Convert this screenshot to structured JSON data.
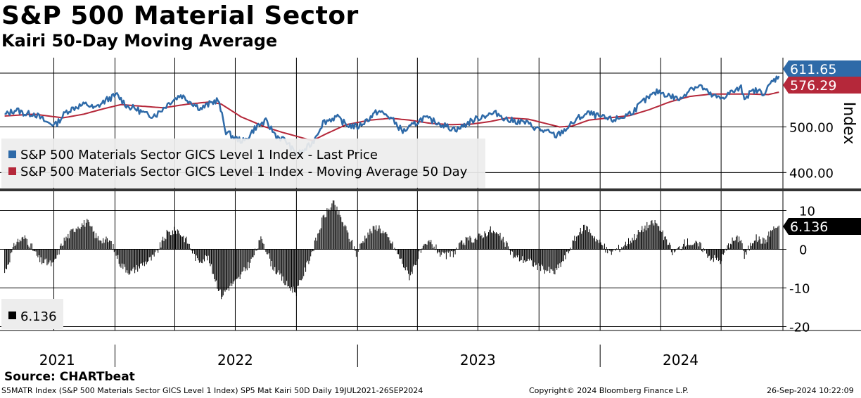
{
  "header": {
    "title": "S&P 500 Material Sector",
    "subtitle": "Kairi 50-Day Moving Average"
  },
  "footer": {
    "source": "Source: CHARTbeat",
    "ticker_info": "S5MATR Index (S&P 500 Materials Sector GICS Level 1 Index) SP5 Mat Kairi 50D  Daily 19JUL2021-26SEP2024",
    "copyright": "Copyright© 2024 Bloomberg Finance L.P.",
    "timestamp": "26-Sep-2024 10:22:09"
  },
  "colors": {
    "price": "#2e6aa8",
    "ma": "#b5283a",
    "kairi": "#000000",
    "grid": "#000000",
    "legend_bg": "#ededed"
  },
  "chart_data": [
    {
      "type": "line",
      "title": "",
      "ylabel": "Index",
      "ylim": [
        365,
        652
      ],
      "yticks": [
        "500.00",
        "400.00"
      ],
      "legend": [
        "S&P 500 Materials Sector GICS Level 1 Index - Last Price",
        "S&P 500 Materials Sector GICS Level 1 Index - Moving Average 50 Day"
      ],
      "legend_position": "bottom-left",
      "grid": true,
      "x_years": [
        "2021",
        "2022",
        "2023",
        "2024"
      ],
      "last_values": {
        "price": "611.65",
        "ma": "576.29"
      },
      "series": [
        {
          "name": "S&P 500 Materials Sector GICS Level 1 Index - Last Price",
          "points": [
            [
              "2021-07-19",
              526
            ],
            [
              "2021-08-05",
              538
            ],
            [
              "2021-08-20",
              528
            ],
            [
              "2021-09-01",
              530
            ],
            [
              "2021-09-20",
              510
            ],
            [
              "2021-10-04",
              505
            ],
            [
              "2021-10-20",
              534
            ],
            [
              "2021-11-05",
              545
            ],
            [
              "2021-11-20",
              550
            ],
            [
              "2021-12-01",
              540
            ],
            [
              "2021-12-20",
              560
            ],
            [
              "2022-01-04",
              570
            ],
            [
              "2022-01-20",
              545
            ],
            [
              "2022-02-01",
              540
            ],
            [
              "2022-02-20",
              525
            ],
            [
              "2022-03-05",
              528
            ],
            [
              "2022-03-25",
              555
            ],
            [
              "2022-04-10",
              570
            ],
            [
              "2022-04-25",
              555
            ],
            [
              "2022-05-10",
              540
            ],
            [
              "2022-05-25",
              552
            ],
            [
              "2022-06-05",
              560
            ],
            [
              "2022-06-17",
              490
            ],
            [
              "2022-07-01",
              475
            ],
            [
              "2022-07-15",
              468
            ],
            [
              "2022-08-01",
              500
            ],
            [
              "2022-08-16",
              512
            ],
            [
              "2022-09-01",
              480
            ],
            [
              "2022-09-15",
              470
            ],
            [
              "2022-09-30",
              440
            ],
            [
              "2022-10-10",
              445
            ],
            [
              "2022-10-25",
              465
            ],
            [
              "2022-11-10",
              510
            ],
            [
              "2022-11-30",
              522
            ],
            [
              "2022-12-15",
              505
            ],
            [
              "2023-01-01",
              500
            ],
            [
              "2023-01-15",
              515
            ],
            [
              "2023-02-01",
              535
            ],
            [
              "2023-02-20",
              520
            ],
            [
              "2023-03-10",
              490
            ],
            [
              "2023-03-20",
              498
            ],
            [
              "2023-04-10",
              520
            ],
            [
              "2023-05-01",
              510
            ],
            [
              "2023-05-20",
              498
            ],
            [
              "2023-06-01",
              495
            ],
            [
              "2023-06-20",
              512
            ],
            [
              "2023-07-10",
              525
            ],
            [
              "2023-07-30",
              530
            ],
            [
              "2023-08-15",
              515
            ],
            [
              "2023-09-10",
              510
            ],
            [
              "2023-09-30",
              495
            ],
            [
              "2023-10-15",
              488
            ],
            [
              "2023-10-27",
              480
            ],
            [
              "2023-11-10",
              495
            ],
            [
              "2023-11-30",
              520
            ],
            [
              "2023-12-15",
              530
            ],
            [
              "2024-01-05",
              520
            ],
            [
              "2024-01-20",
              515
            ],
            [
              "2024-02-05",
              522
            ],
            [
              "2024-02-20",
              535
            ],
            [
              "2024-03-05",
              555
            ],
            [
              "2024-03-28",
              578
            ],
            [
              "2024-04-15",
              568
            ],
            [
              "2024-05-01",
              560
            ],
            [
              "2024-05-15",
              585
            ],
            [
              "2024-05-31",
              590
            ],
            [
              "2024-06-15",
              570
            ],
            [
              "2024-06-30",
              562
            ],
            [
              "2024-07-15",
              575
            ],
            [
              "2024-07-31",
              585
            ],
            [
              "2024-08-05",
              565
            ],
            [
              "2024-08-20",
              580
            ],
            [
              "2024-09-05",
              575
            ],
            [
              "2024-09-15",
              598
            ],
            [
              "2024-09-26",
              611.65
            ]
          ]
        },
        {
          "name": "S&P 500 Materials Sector GICS Level 1 Index - Moving Average 50 Day",
          "points": [
            [
              "2021-07-19",
              524
            ],
            [
              "2021-09-01",
              528
            ],
            [
              "2021-10-15",
              520
            ],
            [
              "2021-11-15",
              528
            ],
            [
              "2021-12-15",
              540
            ],
            [
              "2022-01-10",
              549
            ],
            [
              "2022-02-15",
              545
            ],
            [
              "2022-03-15",
              542
            ],
            [
              "2022-04-20",
              550
            ],
            [
              "2022-05-25",
              555
            ],
            [
              "2022-06-10",
              550
            ],
            [
              "2022-07-10",
              522
            ],
            [
              "2022-08-15",
              500
            ],
            [
              "2022-09-10",
              488
            ],
            [
              "2022-10-05",
              478
            ],
            [
              "2022-10-25",
              470
            ],
            [
              "2022-11-15",
              485
            ],
            [
              "2022-12-15",
              505
            ],
            [
              "2023-01-20",
              515
            ],
            [
              "2023-02-20",
              519
            ],
            [
              "2023-03-20",
              515
            ],
            [
              "2023-04-20",
              508
            ],
            [
              "2023-05-20",
              505
            ],
            [
              "2023-06-20",
              506
            ],
            [
              "2023-07-20",
              512
            ],
            [
              "2023-08-15",
              520
            ],
            [
              "2023-09-15",
              517
            ],
            [
              "2023-10-10",
              508
            ],
            [
              "2023-11-01",
              500
            ],
            [
              "2023-11-20",
              502
            ],
            [
              "2023-12-15",
              515
            ],
            [
              "2024-01-15",
              520
            ],
            [
              "2024-02-15",
              525
            ],
            [
              "2024-03-15",
              538
            ],
            [
              "2024-04-15",
              555
            ],
            [
              "2024-05-15",
              567
            ],
            [
              "2024-06-15",
              572
            ],
            [
              "2024-07-15",
              572
            ],
            [
              "2024-08-15",
              572
            ],
            [
              "2024-09-10",
              571
            ],
            [
              "2024-09-26",
              576.29
            ]
          ]
        }
      ]
    },
    {
      "type": "bar",
      "title": "",
      "ylim": [
        -21,
        15
      ],
      "yticks": [
        "10",
        "0",
        "-10",
        "-20"
      ],
      "legend": [
        "6.136"
      ],
      "legend_position": "bottom-left",
      "grid": true,
      "last_value": "6.136",
      "series": [
        {
          "name": "6.136",
          "points": [
            [
              "2021-07-19",
              -6
            ],
            [
              "2021-08-05",
              2
            ],
            [
              "2021-08-20",
              3
            ],
            [
              "2021-09-10",
              -3
            ],
            [
              "2021-09-30",
              -4
            ],
            [
              "2021-10-15",
              2
            ],
            [
              "2021-11-05",
              6
            ],
            [
              "2021-11-20",
              7
            ],
            [
              "2021-12-05",
              3
            ],
            [
              "2021-12-25",
              2
            ],
            [
              "2022-01-10",
              -4
            ],
            [
              "2022-01-25",
              -6
            ],
            [
              "2022-02-10",
              -4
            ],
            [
              "2022-03-01",
              -2
            ],
            [
              "2022-03-20",
              4
            ],
            [
              "2022-04-05",
              5
            ],
            [
              "2022-04-20",
              2
            ],
            [
              "2022-05-05",
              -3
            ],
            [
              "2022-05-20",
              -2
            ],
            [
              "2022-06-10",
              -12
            ],
            [
              "2022-06-20",
              -10
            ],
            [
              "2022-07-05",
              -8
            ],
            [
              "2022-07-25",
              -3
            ],
            [
              "2022-08-10",
              3
            ],
            [
              "2022-08-25",
              -4
            ],
            [
              "2022-09-15",
              -9
            ],
            [
              "2022-10-01",
              -11
            ],
            [
              "2022-10-15",
              -5
            ],
            [
              "2022-10-30",
              2
            ],
            [
              "2022-11-10",
              8
            ],
            [
              "2022-11-25",
              12
            ],
            [
              "2022-12-10",
              7
            ],
            [
              "2022-12-30",
              -1
            ],
            [
              "2023-01-15",
              4
            ],
            [
              "2023-02-01",
              6
            ],
            [
              "2023-02-20",
              2
            ],
            [
              "2023-03-05",
              -2
            ],
            [
              "2023-03-20",
              -7
            ],
            [
              "2023-04-05",
              -1
            ],
            [
              "2023-04-20",
              2
            ],
            [
              "2023-05-10",
              -2
            ],
            [
              "2023-05-25",
              -1
            ],
            [
              "2023-06-10",
              2
            ],
            [
              "2023-07-01",
              3
            ],
            [
              "2023-07-20",
              5
            ],
            [
              "2023-08-05",
              3
            ],
            [
              "2023-08-25",
              -2
            ],
            [
              "2023-09-15",
              -3
            ],
            [
              "2023-10-05",
              -5
            ],
            [
              "2023-10-25",
              -6
            ],
            [
              "2023-11-10",
              -2
            ],
            [
              "2023-11-25",
              3
            ],
            [
              "2023-12-10",
              6
            ],
            [
              "2023-12-30",
              2
            ],
            [
              "2024-01-15",
              -1
            ],
            [
              "2024-02-01",
              0.5
            ],
            [
              "2024-02-20",
              3
            ],
            [
              "2024-03-10",
              6
            ],
            [
              "2024-03-25",
              7
            ],
            [
              "2024-04-10",
              2
            ],
            [
              "2024-04-20",
              -1
            ],
            [
              "2024-05-10",
              2
            ],
            [
              "2024-05-30",
              1
            ],
            [
              "2024-06-15",
              -2
            ],
            [
              "2024-06-30",
              -3
            ],
            [
              "2024-07-15",
              2
            ],
            [
              "2024-07-31",
              3
            ],
            [
              "2024-08-05",
              -2
            ],
            [
              "2024-08-20",
              3
            ],
            [
              "2024-09-05",
              2
            ],
            [
              "2024-09-15",
              5
            ],
            [
              "2024-09-26",
              6.136
            ]
          ]
        }
      ]
    }
  ]
}
